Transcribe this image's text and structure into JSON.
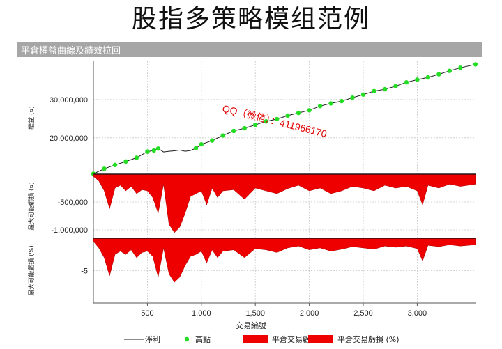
{
  "slide_title": "股指多策略模组范例",
  "panel_title": "平倉權益曲線及績效拉回",
  "watermark": "QQ（微信）：411966170",
  "colors": {
    "equity_line": "#1a1a1a",
    "new_high": "#22dd22",
    "drawdown": "#ee0000",
    "header_bg": "#a6a6a6"
  },
  "chart_data": [
    {
      "type": "line",
      "panel": "equity",
      "ylabel": "權益 (¤)",
      "yticks": [
        20000000,
        30000000
      ],
      "ytick_labels": [
        "20,000,000",
        "30,000,000"
      ],
      "ylim": [
        10500000,
        40000000
      ],
      "x": [
        0,
        100,
        200,
        300,
        400,
        500,
        560,
        600,
        650,
        700,
        750,
        800,
        850,
        900,
        950,
        1000,
        1100,
        1200,
        1300,
        1400,
        1500,
        1600,
        1700,
        1800,
        1900,
        2000,
        2100,
        2200,
        2300,
        2400,
        2500,
        2600,
        2700,
        2800,
        2900,
        3000,
        3100,
        3200,
        3300,
        3400,
        3540
      ],
      "series": [
        {
          "name": "淨利",
          "values": [
            10600000,
            11900000,
            12900000,
            13800000,
            14800000,
            16400000,
            16700000,
            17200000,
            16300000,
            16500000,
            16600000,
            16800000,
            16500000,
            16700000,
            17300000,
            18300000,
            19300000,
            20600000,
            21800000,
            22500000,
            23400000,
            24300000,
            24900000,
            25800000,
            26500000,
            27200000,
            28300000,
            29000000,
            29600000,
            30500000,
            31300000,
            32200000,
            32700000,
            33500000,
            34500000,
            35200000,
            35800000,
            36600000,
            37500000,
            38300000,
            39200000
          ]
        }
      ],
      "xlim": [
        0,
        3540
      ]
    },
    {
      "type": "area",
      "panel": "drawdown_amount",
      "ylabel": "最大可能虧損 (¤)",
      "yticks": [
        -500000,
        -1000000
      ],
      "ytick_labels": [
        "-500,000",
        "-1,000,000"
      ],
      "ylim": [
        -1150000,
        0
      ],
      "x": [
        0,
        50,
        100,
        150,
        200,
        250,
        300,
        350,
        400,
        450,
        500,
        550,
        600,
        650,
        700,
        750,
        800,
        850,
        900,
        950,
        1000,
        1050,
        1100,
        1150,
        1200,
        1300,
        1400,
        1500,
        1600,
        1700,
        1800,
        1900,
        2000,
        2100,
        2200,
        2300,
        2400,
        2500,
        2600,
        2700,
        2800,
        2900,
        3000,
        3050,
        3100,
        3200,
        3300,
        3400,
        3540
      ],
      "series": [
        {
          "name": "平倉交易虧損",
          "values": [
            -40000,
            -120000,
            -300000,
            -620000,
            -250000,
            -200000,
            -300000,
            -220000,
            -350000,
            -280000,
            -300000,
            -420000,
            -700000,
            -180000,
            -900000,
            -1050000,
            -950000,
            -700000,
            -400000,
            -350000,
            -300000,
            -550000,
            -250000,
            -420000,
            -300000,
            -280000,
            -450000,
            -250000,
            -300000,
            -350000,
            -260000,
            -200000,
            -300000,
            -250000,
            -350000,
            -300000,
            -220000,
            -250000,
            -300000,
            -200000,
            -250000,
            -220000,
            -300000,
            -550000,
            -200000,
            -250000,
            -180000,
            -220000,
            -180000
          ]
        }
      ],
      "xlim": [
        0,
        3540
      ]
    },
    {
      "type": "area",
      "panel": "drawdown_pct",
      "ylabel": "最大可能虧損 (%)",
      "yticks": [
        -5
      ],
      "ytick_labels": [
        "-5"
      ],
      "ylim": [
        -10,
        0
      ],
      "x": [
        0,
        50,
        100,
        150,
        200,
        250,
        300,
        350,
        400,
        450,
        500,
        550,
        600,
        650,
        700,
        750,
        800,
        850,
        900,
        950,
        1000,
        1050,
        1100,
        1150,
        1200,
        1300,
        1400,
        1500,
        1600,
        1700,
        1800,
        1900,
        2000,
        2100,
        2200,
        2300,
        2400,
        2500,
        2600,
        2700,
        2800,
        2900,
        3000,
        3050,
        3100,
        3200,
        3300,
        3400,
        3540
      ],
      "series": [
        {
          "name": "平倉交易虧損 (%)",
          "values": [
            -0.5,
            -1.5,
            -3.0,
            -5.8,
            -2.5,
            -2.0,
            -2.5,
            -1.8,
            -3.0,
            -2.2,
            -2.0,
            -2.8,
            -6.0,
            -1.5,
            -5.5,
            -6.8,
            -6.0,
            -4.2,
            -2.8,
            -2.5,
            -2.0,
            -3.8,
            -1.8,
            -3.0,
            -2.0,
            -1.8,
            -3.0,
            -1.6,
            -1.8,
            -2.2,
            -1.5,
            -1.2,
            -1.8,
            -1.5,
            -2.0,
            -1.7,
            -1.3,
            -1.5,
            -1.7,
            -1.2,
            -1.4,
            -1.2,
            -1.6,
            -3.5,
            -1.1,
            -1.3,
            -1.0,
            -1.2,
            -1.0
          ]
        }
      ],
      "xlim": [
        0,
        3540
      ]
    }
  ],
  "x_axis": {
    "label": "交易編號",
    "ticks": [
      500,
      1000,
      1500,
      2000,
      2500,
      3000
    ],
    "tick_labels": [
      "500",
      "1,000",
      "1,500",
      "2,000",
      "2,500",
      "3,000"
    ]
  },
  "legend": [
    {
      "key": "line",
      "label": "淨利",
      "color": "#1a1a1a"
    },
    {
      "key": "dot",
      "label": "高點",
      "color": "#22dd22"
    },
    {
      "key": "swatch",
      "label": "平倉交易虧損",
      "color": "#ee0000"
    },
    {
      "key": "swatch",
      "label": "平倉交易虧損 (%)",
      "color": "#ee0000"
    }
  ]
}
